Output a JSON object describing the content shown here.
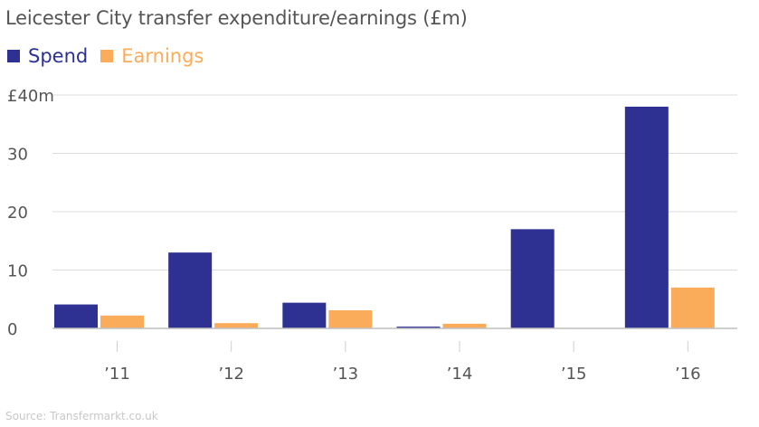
{
  "chart_data": {
    "type": "bar",
    "title": "Leicester City transfer expenditure/earnings (£m)",
    "categories": [
      "’11",
      "’12",
      "’13",
      "’14",
      "’15",
      "’16"
    ],
    "series": [
      {
        "name": "Spend",
        "color": "#2e3192",
        "values": [
          4.1,
          13.0,
          4.4,
          0.3,
          17.0,
          38.0
        ]
      },
      {
        "name": "Earnings",
        "color": "#fbac5a",
        "values": [
          2.2,
          0.9,
          3.1,
          0.8,
          0,
          7.0
        ]
      }
    ],
    "ylim": [
      0,
      40
    ],
    "yticks": [
      {
        "value": 0,
        "label": "0"
      },
      {
        "value": 10,
        "label": "10"
      },
      {
        "value": 20,
        "label": "20"
      },
      {
        "value": 30,
        "label": "30"
      },
      {
        "value": 40,
        "label": "£40m"
      }
    ],
    "grid": true,
    "legend_position": "top-left",
    "source": "Source: Transfermarkt.co.uk"
  }
}
